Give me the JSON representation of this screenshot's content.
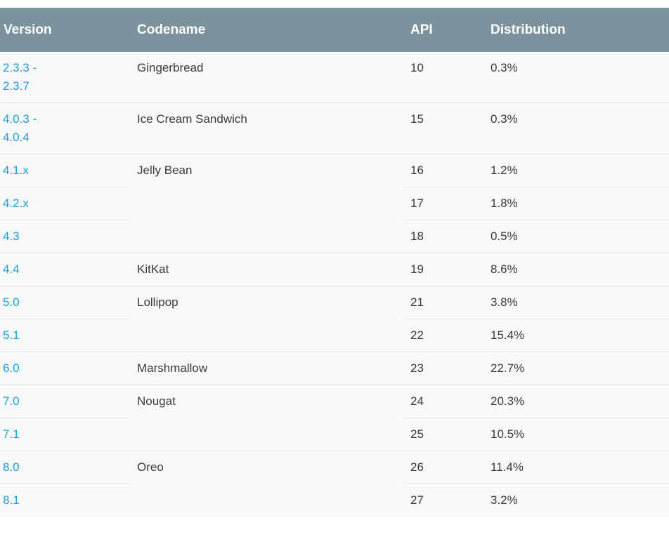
{
  "headers": {
    "version": "Version",
    "codename": "Codename",
    "api": "API",
    "distribution": "Distribution"
  },
  "rows": [
    {
      "version": "2.3.3 -\n2.3.7",
      "codename": "Gingerbread",
      "api": "10",
      "distribution": "0.3%"
    },
    {
      "version": "4.0.3 -\n4.0.4",
      "codename": "Ice Cream Sandwich",
      "api": "15",
      "distribution": "0.3%"
    },
    {
      "version": "4.1.x",
      "codename": "Jelly Bean",
      "api": "16",
      "distribution": "1.2%"
    },
    {
      "version": "4.2.x",
      "codename": "",
      "api": "17",
      "distribution": "1.8%"
    },
    {
      "version": "4.3",
      "codename": "",
      "api": "18",
      "distribution": "0.5%"
    },
    {
      "version": "4.4",
      "codename": "KitKat",
      "api": "19",
      "distribution": "8.6%"
    },
    {
      "version": "5.0",
      "codename": "Lollipop",
      "api": "21",
      "distribution": "3.8%"
    },
    {
      "version": "5.1",
      "codename": "",
      "api": "22",
      "distribution": "15.4%"
    },
    {
      "version": "6.0",
      "codename": "Marshmallow",
      "api": "23",
      "distribution": "22.7%"
    },
    {
      "version": "7.0",
      "codename": "Nougat",
      "api": "24",
      "distribution": "20.3%"
    },
    {
      "version": "7.1",
      "codename": "",
      "api": "25",
      "distribution": "10.5%"
    },
    {
      "version": "8.0",
      "codename": "Oreo",
      "api": "26",
      "distribution": "11.4%"
    },
    {
      "version": "8.1",
      "codename": "",
      "api": "27",
      "distribution": "3.2%"
    }
  ],
  "colors": {
    "header_bg": "#7b939d",
    "header_text": "#ffffff",
    "link": "#1ea1d9",
    "row_bg": "#f7f9fa",
    "divider": "#e1e4e6"
  }
}
